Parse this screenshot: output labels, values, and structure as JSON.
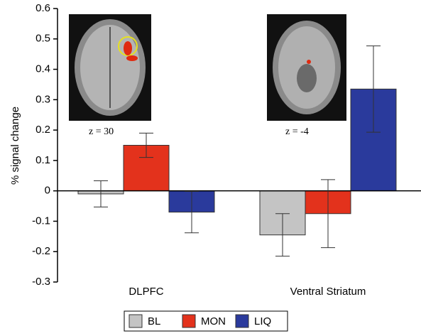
{
  "chart_data": {
    "type": "bar",
    "y_label": "% signal change",
    "annotations": [
      "z = 30",
      "z = -4"
    ],
    "categories": [
      "DLPFC",
      "Ventral Striatum"
    ],
    "series": [
      {
        "name": "BL",
        "color": "#c4c4c4",
        "values": [
          -0.01,
          -0.145
        ],
        "errors": [
          0.043,
          0.07
        ]
      },
      {
        "name": "MON",
        "color": "#e3321c",
        "values": [
          0.15,
          -0.075
        ],
        "errors": [
          0.04,
          0.112
        ]
      },
      {
        "name": "LIQ",
        "color": "#2a3a9c",
        "values": [
          -0.07,
          0.335
        ],
        "errors": [
          0.068,
          0.142
        ]
      }
    ],
    "ylim": [
      -0.3,
      0.6
    ],
    "yticks": [
      -0.3,
      -0.2,
      -0.1,
      0,
      0.1,
      0.2,
      0.3,
      0.4,
      0.5,
      0.6
    ],
    "grid": false,
    "legend": "bottom"
  }
}
